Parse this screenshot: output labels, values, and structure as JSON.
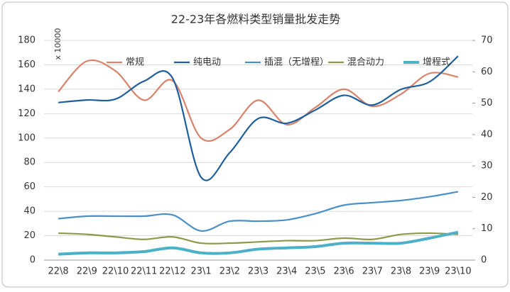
{
  "chart_data": {
    "type": "line",
    "title": "22-23年各燃料类型销量批发走势",
    "y_unit_label": "x 10000",
    "categories": [
      "22\\8",
      "22\\9",
      "22\\10",
      "22\\11",
      "22\\12",
      "23\\1",
      "23\\2",
      "23\\3",
      "23\\4",
      "23\\5",
      "23\\6",
      "23\\7",
      "23\\8",
      "23\\9",
      "23\\10"
    ],
    "ylim": [
      0,
      180
    ],
    "yticks": [
      0,
      20,
      40,
      60,
      80,
      100,
      120,
      140,
      160,
      180
    ],
    "y2lim": [
      0,
      70
    ],
    "y2ticks": [
      0,
      10,
      20,
      30,
      40,
      50,
      60,
      70
    ],
    "grid": true,
    "series": [
      {
        "name": "常规",
        "color": "#d9826a",
        "values": [
          138,
          163,
          155,
          131,
          147,
          100,
          107,
          131,
          111,
          125,
          140,
          126,
          136,
          153,
          150
        ]
      },
      {
        "name": "纯电动",
        "color": "#1f5f9e",
        "axis": "y2",
        "values": [
          50.2,
          51,
          51.3,
          57,
          58,
          26.4,
          34.2,
          45.1,
          43.6,
          47.8,
          52.5,
          49.4,
          54.4,
          56.8,
          65
        ]
      },
      {
        "name": "插混（无增程）",
        "color": "#4a90c8",
        "axis": "y2",
        "values": [
          13.2,
          14,
          14,
          14,
          14.4,
          9.3,
          12.4,
          12.4,
          12.8,
          14.8,
          17.5,
          18.3,
          19,
          20.2,
          21.8
        ]
      },
      {
        "name": "混合动力",
        "color": "#8c9a4a",
        "axis": "y2",
        "values": [
          8.6,
          8.2,
          7.4,
          6.6,
          7.4,
          5.4,
          5.4,
          5.8,
          6.2,
          6.2,
          7,
          6.6,
          8.2,
          8.6,
          8.2
        ]
      },
      {
        "name": "增程式",
        "color": "#4bb0c8",
        "axis": "y2",
        "width": 4,
        "values": [
          1.9,
          2.3,
          2.3,
          2.7,
          3.9,
          2.3,
          2.3,
          3.5,
          3.9,
          4.3,
          5.4,
          5.4,
          5.4,
          7,
          8.9
        ]
      }
    ]
  }
}
